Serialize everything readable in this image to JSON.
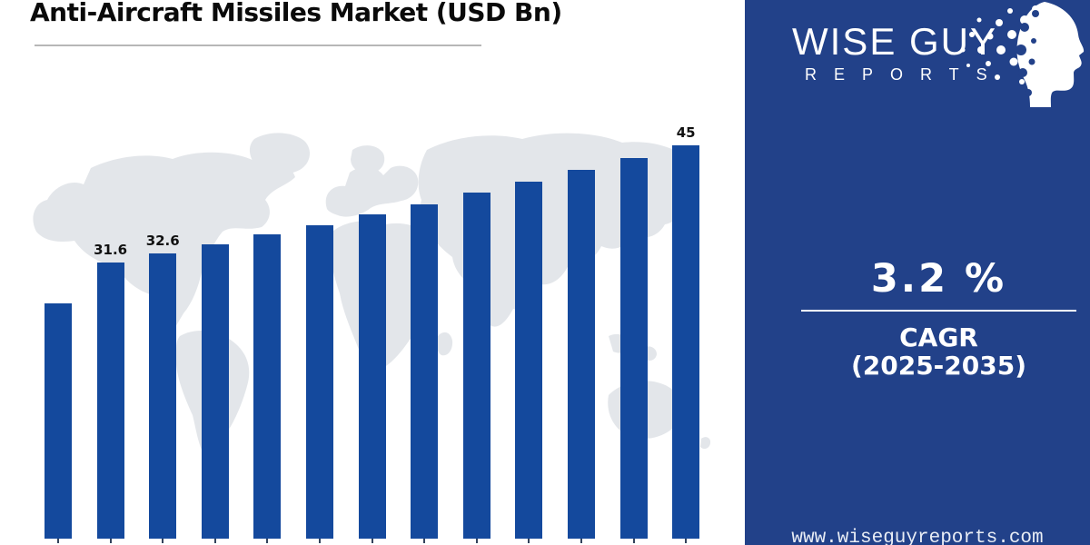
{
  "title": "Anti-Aircraft Missiles Market (USD Bn)",
  "chart_data": {
    "type": "bar",
    "title": "Anti-Aircraft Missiles Market (USD Bn)",
    "unit": "USD Bn",
    "categories": [
      "",
      "",
      "",
      "",
      "",
      "",
      "",
      "",
      "",
      "",
      "",
      "",
      ""
    ],
    "values": [
      26.9,
      31.6,
      32.6,
      33.7,
      34.8,
      35.9,
      37.1,
      38.3,
      39.6,
      40.9,
      42.2,
      43.6,
      45
    ],
    "data_labels": {
      "1": "31.6",
      "2": "32.6",
      "12": "45"
    },
    "bar_color": "#14499d",
    "ylim": [
      0,
      48
    ],
    "grid": "off",
    "legend": "none",
    "x_tick_labels_visible": false
  },
  "panel": {
    "logo": {
      "line1": "WISE GUY",
      "line2": "REPORTS"
    },
    "cagr_value": "3.2 %",
    "cagr_label": "CAGR",
    "cagr_range": "(2025-2035)",
    "website": "www.wiseguyreports.com"
  },
  "colors": {
    "panel_background": "#224189",
    "bar_blue": "#14499d",
    "map_watermark": "#e3e6ea",
    "title_text": "#0a0a0a",
    "divider_gray": "#b7b7b7",
    "panel_text": "#ffffff"
  }
}
